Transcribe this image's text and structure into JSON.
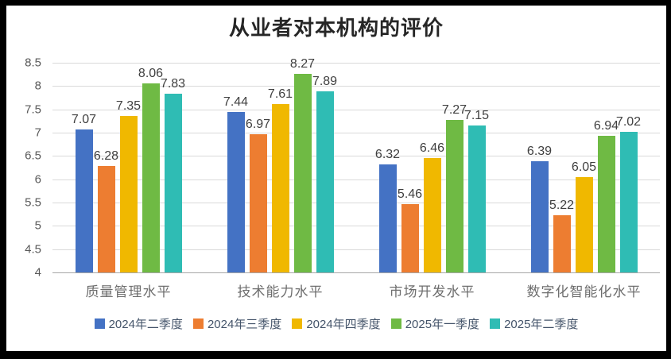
{
  "title": "从业者对本机构的评价",
  "chart_data": {
    "type": "bar",
    "title": "从业者对本机构的评价",
    "categories": [
      "质量管理水平",
      "技术能力水平",
      "市场开发水平",
      "数字化智能化水平"
    ],
    "series": [
      {
        "name": "2024年二季度",
        "color": "#4472c4",
        "values": [
          7.07,
          7.44,
          6.32,
          6.39
        ]
      },
      {
        "name": "2024年三季度",
        "color": "#ed7d31",
        "values": [
          6.28,
          6.97,
          5.46,
          5.22
        ]
      },
      {
        "name": "2024年四季度",
        "color": "#f0b800",
        "values": [
          7.35,
          7.61,
          6.46,
          6.05
        ]
      },
      {
        "name": "2025年一季度",
        "color": "#6fba44",
        "values": [
          8.06,
          8.27,
          7.27,
          6.94
        ]
      },
      {
        "name": "2025年二季度",
        "color": "#2fbcb4",
        "values": [
          7.83,
          7.89,
          7.15,
          7.02
        ]
      }
    ],
    "ylim": [
      4,
      8.5
    ],
    "ytick_step": 0.5,
    "yticks": [
      "8.5",
      "8",
      "7.5",
      "7",
      "6.5",
      "6",
      "5.5",
      "5",
      "4.5",
      "4"
    ],
    "grid": true,
    "data_labels": true,
    "legend_position": "bottom",
    "colors": {
      "background": "#ffffff",
      "frame": "#000000",
      "gridline": "#d9d9d9",
      "axis_line": "#a6a6a6",
      "title_text": "#262626",
      "tick_text": "#595959",
      "data_label_text": "#404040",
      "category_text": "#6e6e6e",
      "legend_text": "#44546a"
    }
  }
}
